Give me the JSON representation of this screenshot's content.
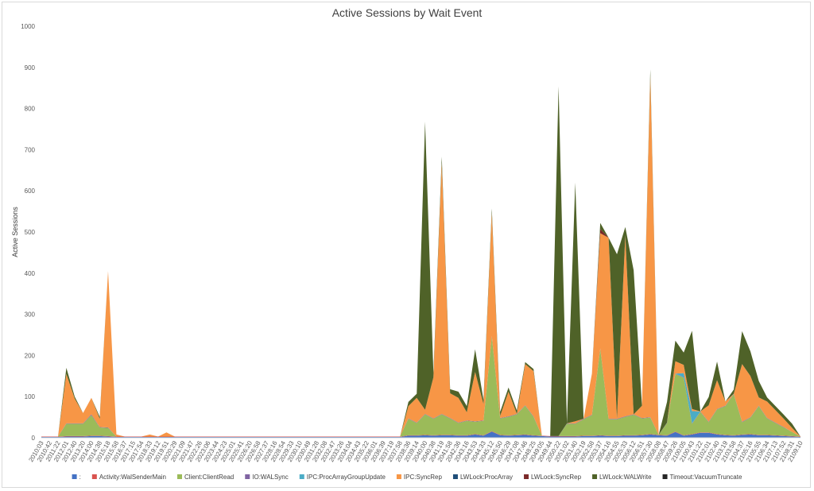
{
  "chart_data": {
    "type": "area",
    "title": "Active Sessions by Wait Event",
    "ylabel": "Active Sessions",
    "xlabel": "",
    "ylim": [
      0,
      1000
    ],
    "yticks": [
      0,
      100,
      200,
      300,
      400,
      500,
      600,
      700,
      800,
      900,
      1000
    ],
    "stacked": true,
    "grid": false,
    "legend_position": "bottom",
    "x": [
      "2010:03",
      "2010:42",
      "2011:22",
      "2012:01",
      "2012:40",
      "2013:20",
      "2014:00",
      "2014:38",
      "2015:18",
      "2015:58",
      "2016:37",
      "2017:15",
      "2017:54",
      "2018:33",
      "2019:12",
      "2019:51",
      "2020:29",
      "2021:09",
      "2021:47",
      "2022:26",
      "2023:06",
      "2023:44",
      "2024:23",
      "2025:01",
      "2025:41",
      "2026:20",
      "2026:58",
      "2027:37",
      "2028:16",
      "2028:54",
      "2029:33",
      "2030:10",
      "2030:49",
      "2031:28",
      "2032:08",
      "2032:47",
      "2033:26",
      "2034:04",
      "2034:43",
      "2035:22",
      "2036:01",
      "2036:39",
      "2037:19",
      "2037:58",
      "2038:36",
      "2039:14",
      "2040:00",
      "2040:38",
      "2041:19",
      "2041:58",
      "2042:36",
      "2043:16",
      "2043:53",
      "2044:33",
      "2045:12",
      "2045:50",
      "2046:29",
      "2047:08",
      "2047:46",
      "2048:25",
      "2049:05",
      "2049:44",
      "2050:22",
      "2051:02",
      "2051:40",
      "2052:19",
      "2052:58",
      "2053:37",
      "2054:16",
      "2054:55",
      "2055:33",
      "2056:12",
      "2056:51",
      "2057:30",
      "2058:08",
      "2058:47",
      "2059:26",
      "2100:05",
      "2100:43",
      "2101:22",
      "2102:01",
      "2102:40",
      "2103:19",
      "2103:58",
      "2104:37",
      "2105:16",
      "2105:55",
      "2106:34",
      "2107:13",
      "2107:52",
      "2108:31",
      "2109:10"
    ],
    "x_tick_labels": [
      "2010:03",
      "2010:42",
      "2011:22",
      "2012:01",
      "2012:40",
      "2013:20",
      "2014:00",
      "2014:38",
      "2015:18",
      "2015:58",
      "2016:37",
      "2017:15",
      "2017:54",
      "2018:33",
      "2019:12",
      "2019:51",
      "2020:29",
      "2021:09",
      "2021:47",
      "2022:26",
      "2023:06",
      "2023:44",
      "2024:23",
      "2025:01",
      "2025:41",
      "2026:20",
      "2026:58",
      "2027:37",
      "2028:16",
      "2028:54",
      "2029:33",
      "2030:10",
      "2030:49",
      "2031:28",
      "2032:08",
      "2032:47",
      "2033:26",
      "2034:04",
      "2034:43",
      "2035:22",
      "2036:01",
      "2036:39",
      "2037:19",
      "2037:58",
      "2038:36",
      "2039:14",
      "2040:00",
      "2040:38",
      "2041:19",
      "2041:58",
      "2042:36",
      "2043:16",
      "2043:53",
      "2044:33",
      "2045:12",
      "2045:50",
      "2046:29",
      "2047:08",
      "2047:46",
      "2048:25",
      "2049:05",
      "2049:44",
      "2050:22",
      "2051:02",
      "2051:40",
      "2052:19",
      "2052:58",
      "2053:37",
      "2054:16",
      "2054:55",
      "2055:33",
      "2056:12",
      "2056:51",
      "2057:30",
      "2058:08",
      "2058:47",
      "2059:26",
      "2100:05",
      "2100:43",
      "2101:22",
      "2102:01",
      "2102:40",
      "2103:19",
      "2103:58",
      "2104:37",
      "2105:16",
      "2105:55",
      "2106:34",
      "2107:13",
      "2107:52",
      "2108:31",
      "2109:10"
    ],
    "series": [
      {
        "name": ":",
        "color": "#4472c4",
        "values": [
          2,
          2,
          2,
          3,
          3,
          3,
          4,
          4,
          3,
          2,
          2,
          2,
          2,
          2,
          2,
          2,
          2,
          2,
          2,
          2,
          2,
          2,
          2,
          2,
          2,
          2,
          2,
          2,
          2,
          2,
          2,
          2,
          2,
          2,
          2,
          2,
          2,
          2,
          2,
          2,
          2,
          2,
          2,
          2,
          5,
          5,
          6,
          5,
          6,
          6,
          5,
          5,
          8,
          5,
          15,
          6,
          5,
          6,
          7,
          5,
          4,
          3,
          3,
          3,
          3,
          4,
          4,
          5,
          4,
          4,
          5,
          5,
          6,
          8,
          6,
          5,
          14,
          5,
          8,
          12,
          12,
          8,
          6,
          5,
          7,
          8,
          6,
          6,
          5,
          4,
          3,
          2
        ]
      },
      {
        "name": "Activity:WalSenderMain",
        "color": "#d9534f",
        "values": [
          1,
          1,
          1,
          1,
          1,
          1,
          1,
          1,
          1,
          1,
          1,
          1,
          1,
          1,
          1,
          1,
          1,
          1,
          1,
          1,
          1,
          1,
          1,
          1,
          1,
          1,
          1,
          1,
          1,
          1,
          1,
          1,
          1,
          1,
          1,
          1,
          1,
          1,
          1,
          1,
          1,
          1,
          1,
          1,
          1,
          1,
          1,
          1,
          1,
          1,
          1,
          1,
          1,
          1,
          1,
          1,
          1,
          1,
          1,
          1,
          1,
          1,
          1,
          1,
          1,
          1,
          1,
          1,
          1,
          1,
          1,
          1,
          1,
          1,
          1,
          1,
          1,
          1,
          1,
          1,
          1,
          1,
          1,
          1,
          1,
          1,
          1,
          1,
          1,
          1,
          1,
          1
        ]
      },
      {
        "name": "Client:ClientRead",
        "color": "#9bbb59",
        "values": [
          0,
          0,
          0,
          30,
          30,
          30,
          50,
          20,
          20,
          0,
          0,
          0,
          0,
          0,
          0,
          0,
          0,
          0,
          0,
          0,
          0,
          0,
          0,
          0,
          0,
          0,
          0,
          0,
          0,
          0,
          0,
          0,
          0,
          0,
          0,
          0,
          0,
          0,
          0,
          0,
          0,
          0,
          0,
          0,
          40,
          30,
          50,
          40,
          50,
          40,
          30,
          35,
          30,
          35,
          230,
          40,
          45,
          50,
          70,
          45,
          0,
          0,
          0,
          30,
          30,
          40,
          50,
          210,
          40,
          40,
          45,
          50,
          40,
          40,
          0,
          30,
          140,
          140,
          25,
          50,
          25,
          60,
          70,
          100,
          30,
          40,
          70,
          40,
          30,
          20,
          10,
          0
        ]
      },
      {
        "name": "IO:WALSync",
        "color": "#8064a2",
        "values": [
          0,
          0,
          0,
          1,
          1,
          1,
          2,
          1,
          1,
          0,
          0,
          0,
          0,
          0,
          0,
          0,
          0,
          0,
          0,
          0,
          0,
          0,
          0,
          0,
          0,
          0,
          0,
          0,
          0,
          0,
          0,
          0,
          0,
          0,
          0,
          0,
          0,
          0,
          0,
          0,
          0,
          0,
          0,
          0,
          1,
          1,
          1,
          1,
          1,
          1,
          1,
          1,
          1,
          1,
          1,
          1,
          1,
          1,
          1,
          1,
          0,
          0,
          0,
          1,
          1,
          1,
          1,
          1,
          1,
          1,
          1,
          1,
          1,
          1,
          0,
          1,
          1,
          1,
          1,
          1,
          1,
          1,
          1,
          1,
          1,
          1,
          1,
          1,
          1,
          1,
          0,
          0
        ]
      },
      {
        "name": "IPC:ProcArrayGroupUpdate",
        "color": "#4bacc6",
        "values": [
          0,
          0,
          0,
          0,
          0,
          0,
          0,
          0,
          0,
          0,
          0,
          0,
          0,
          0,
          0,
          0,
          0,
          0,
          0,
          0,
          0,
          0,
          0,
          0,
          0,
          0,
          0,
          0,
          0,
          0,
          0,
          0,
          0,
          0,
          0,
          0,
          0,
          0,
          0,
          0,
          0,
          0,
          0,
          0,
          0,
          0,
          0,
          0,
          0,
          0,
          0,
          0,
          0,
          0,
          0,
          0,
          0,
          0,
          0,
          0,
          0,
          0,
          0,
          0,
          0,
          0,
          0,
          0,
          0,
          0,
          0,
          0,
          0,
          0,
          0,
          0,
          0,
          10,
          30,
          0,
          0,
          0,
          0,
          0,
          0,
          0,
          0,
          0,
          0,
          0,
          0,
          0
        ]
      },
      {
        "name": "IPC:SyncRep",
        "color": "#f79646",
        "values": [
          0,
          0,
          0,
          120,
          60,
          25,
          40,
          20,
          380,
          5,
          0,
          0,
          0,
          5,
          0,
          10,
          0,
          0,
          0,
          0,
          0,
          0,
          0,
          0,
          0,
          0,
          0,
          0,
          0,
          0,
          0,
          0,
          0,
          0,
          0,
          0,
          0,
          0,
          0,
          0,
          0,
          0,
          0,
          0,
          30,
          60,
          10,
          100,
          610,
          60,
          60,
          20,
          120,
          40,
          300,
          5,
          60,
          0,
          100,
          110,
          0,
          0,
          0,
          0,
          5,
          0,
          100,
          280,
          440,
          0,
          440,
          0,
          30,
          830,
          0,
          0,
          30,
          20,
          5,
          0,
          40,
          70,
          10,
          0,
          140,
          100,
          20,
          40,
          30,
          20,
          10,
          0
        ]
      },
      {
        "name": "LWLock:ProcArray",
        "color": "#1f4e79",
        "values": [
          0,
          0,
          0,
          0,
          0,
          0,
          0,
          0,
          0,
          0,
          0,
          0,
          0,
          0,
          0,
          0,
          0,
          0,
          0,
          0,
          0,
          0,
          0,
          0,
          0,
          0,
          0,
          0,
          0,
          0,
          0,
          0,
          0,
          0,
          0,
          0,
          0,
          0,
          0,
          0,
          0,
          0,
          0,
          0,
          0,
          0,
          0,
          0,
          0,
          0,
          0,
          0,
          0,
          0,
          0,
          0,
          0,
          0,
          0,
          0,
          0,
          0,
          0,
          0,
          0,
          0,
          0,
          0,
          0,
          0,
          0,
          0,
          0,
          0,
          0,
          0,
          0,
          0,
          0,
          0,
          0,
          0,
          0,
          0,
          0,
          0,
          0,
          0,
          0,
          0,
          0,
          0
        ]
      },
      {
        "name": "LWLock:SyncRep",
        "color": "#7b2a2a",
        "values": [
          0,
          0,
          0,
          0,
          0,
          0,
          0,
          0,
          0,
          0,
          0,
          0,
          0,
          0,
          0,
          0,
          0,
          0,
          0,
          0,
          0,
          0,
          0,
          0,
          0,
          0,
          0,
          0,
          0,
          0,
          0,
          0,
          0,
          0,
          0,
          0,
          0,
          0,
          0,
          0,
          0,
          0,
          0,
          0,
          0,
          0,
          0,
          0,
          0,
          0,
          0,
          0,
          0,
          0,
          0,
          0,
          0,
          0,
          0,
          0,
          0,
          0,
          0,
          0,
          0,
          0,
          0,
          10,
          0,
          0,
          0,
          0,
          0,
          0,
          0,
          0,
          0,
          0,
          0,
          0,
          0,
          0,
          0,
          0,
          0,
          0,
          0,
          0,
          0,
          0,
          0,
          0
        ]
      },
      {
        "name": "LWLock:WALWrite",
        "color": "#4f6228",
        "values": [
          0,
          0,
          0,
          15,
          5,
          0,
          0,
          5,
          0,
          0,
          0,
          0,
          0,
          0,
          0,
          0,
          0,
          0,
          0,
          0,
          0,
          0,
          0,
          0,
          0,
          0,
          0,
          0,
          0,
          0,
          0,
          0,
          0,
          0,
          0,
          0,
          0,
          0,
          0,
          0,
          0,
          0,
          0,
          0,
          10,
          10,
          700,
          10,
          15,
          10,
          15,
          15,
          55,
          10,
          10,
          10,
          10,
          8,
          5,
          5,
          0,
          0,
          850,
          0,
          580,
          0,
          0,
          15,
          0,
          400,
          20,
          350,
          0,
          15,
          0,
          50,
          50,
          30,
          190,
          0,
          20,
          45,
          0,
          10,
          80,
          60,
          40,
          10,
          10,
          10,
          10,
          0
        ]
      },
      {
        "name": "Timeout:VacuumTruncate",
        "color": "#262626",
        "values": [
          0,
          0,
          0,
          0,
          0,
          0,
          0,
          0,
          0,
          0,
          0,
          0,
          0,
          0,
          0,
          0,
          0,
          0,
          0,
          0,
          0,
          0,
          0,
          0,
          0,
          0,
          0,
          0,
          0,
          0,
          0,
          0,
          0,
          0,
          0,
          0,
          0,
          0,
          0,
          0,
          0,
          0,
          0,
          0,
          0,
          0,
          0,
          0,
          0,
          0,
          0,
          0,
          0,
          0,
          0,
          0,
          0,
          0,
          0,
          0,
          0,
          0,
          0,
          0,
          0,
          0,
          0,
          0,
          0,
          0,
          0,
          0,
          0,
          0,
          0,
          0,
          0,
          0,
          0,
          0,
          0,
          0,
          0,
          0,
          0,
          0,
          0,
          0,
          0,
          0,
          0,
          0
        ]
      }
    ]
  }
}
